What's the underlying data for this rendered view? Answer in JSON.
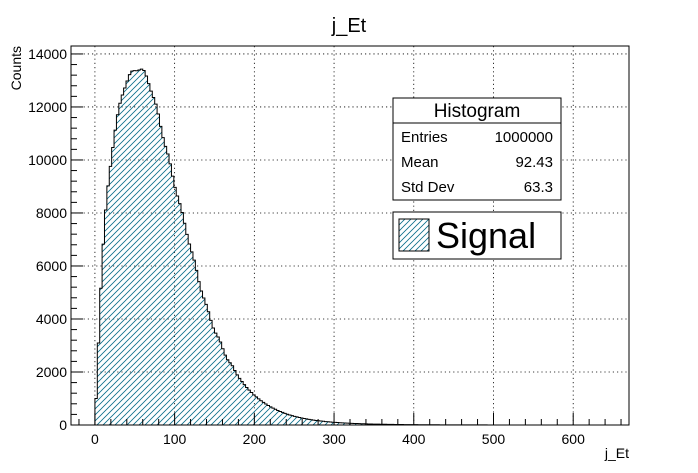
{
  "chart_data": {
    "type": "histogram",
    "title": "j_Et",
    "xlabel": "j_Et",
    "ylabel": "Counts",
    "xlim": [
      -30,
      670
    ],
    "ylim": [
      0,
      14300
    ],
    "x_ticks": [
      0,
      100,
      200,
      300,
      400,
      500,
      600
    ],
    "x_tick_labels": [
      "0",
      "100",
      "200",
      "300",
      "400",
      "500",
      "600"
    ],
    "y_ticks": [
      0,
      2000,
      4000,
      6000,
      8000,
      10000,
      12000,
      14000
    ],
    "y_tick_labels": [
      "0",
      "2000",
      "4000",
      "6000",
      "8000",
      "10000",
      "12000",
      "14000"
    ],
    "grid": true,
    "bin_width": 3,
    "bin_edges_range": [
      0,
      660
    ],
    "curve_points": [
      [
        0,
        0
      ],
      [
        3,
        2000
      ],
      [
        6,
        4300
      ],
      [
        9,
        6100
      ],
      [
        12,
        7500
      ],
      [
        15,
        8600
      ],
      [
        18,
        9400
      ],
      [
        21,
        10200
      ],
      [
        24,
        10850
      ],
      [
        27,
        11400
      ],
      [
        30,
        11900
      ],
      [
        33,
        12300
      ],
      [
        36,
        12650
      ],
      [
        39,
        12900
      ],
      [
        42,
        13100
      ],
      [
        45,
        13250
      ],
      [
        48,
        13350
      ],
      [
        51,
        13400
      ],
      [
        54,
        13450
      ],
      [
        57,
        13420
      ],
      [
        60,
        13380
      ],
      [
        63,
        13250
      ],
      [
        66,
        13050
      ],
      [
        69,
        12800
      ],
      [
        72,
        12500
      ],
      [
        75,
        12200
      ],
      [
        78,
        11900
      ],
      [
        81,
        11500
      ],
      [
        84,
        11100
      ],
      [
        87,
        10700
      ],
      [
        90,
        10350
      ],
      [
        93,
        10000
      ],
      [
        96,
        9600
      ],
      [
        99,
        9200
      ],
      [
        102,
        8850
      ],
      [
        105,
        8500
      ],
      [
        110,
        7900
      ],
      [
        115,
        7300
      ],
      [
        120,
        6700
      ],
      [
        125,
        6100
      ],
      [
        130,
        5500
      ],
      [
        135,
        4950
      ],
      [
        140,
        4450
      ],
      [
        145,
        4000
      ],
      [
        150,
        3600
      ],
      [
        155,
        3250
      ],
      [
        160,
        2900
      ],
      [
        165,
        2600
      ],
      [
        170,
        2300
      ],
      [
        175,
        2050
      ],
      [
        180,
        1820
      ],
      [
        185,
        1620
      ],
      [
        190,
        1430
      ],
      [
        195,
        1270
      ],
      [
        200,
        1120
      ],
      [
        210,
        880
      ],
      [
        220,
        690
      ],
      [
        230,
        540
      ],
      [
        240,
        420
      ],
      [
        250,
        330
      ],
      [
        260,
        260
      ],
      [
        270,
        205
      ],
      [
        280,
        160
      ],
      [
        290,
        128
      ],
      [
        300,
        100
      ],
      [
        320,
        65
      ],
      [
        340,
        42
      ],
      [
        360,
        28
      ],
      [
        380,
        19
      ],
      [
        400,
        13
      ],
      [
        420,
        9
      ],
      [
        440,
        6
      ],
      [
        460,
        4
      ],
      [
        480,
        3
      ],
      [
        500,
        2
      ],
      [
        540,
        1
      ],
      [
        580,
        0.5
      ],
      [
        620,
        0.2
      ],
      [
        660,
        0
      ]
    ],
    "series": [
      {
        "name": "Signal",
        "fill": "hatched",
        "line_color": "#000000",
        "hatch_color": "#0b6e8a"
      }
    ]
  },
  "stats_box": {
    "title": "Histogram",
    "rows": [
      {
        "label": "Entries",
        "value": "1000000"
      },
      {
        "label": "Mean",
        "value": "92.43"
      },
      {
        "label": "Std Dev",
        "value": "63.3"
      }
    ]
  },
  "legend": {
    "entries": [
      {
        "label": "Signal"
      }
    ]
  }
}
